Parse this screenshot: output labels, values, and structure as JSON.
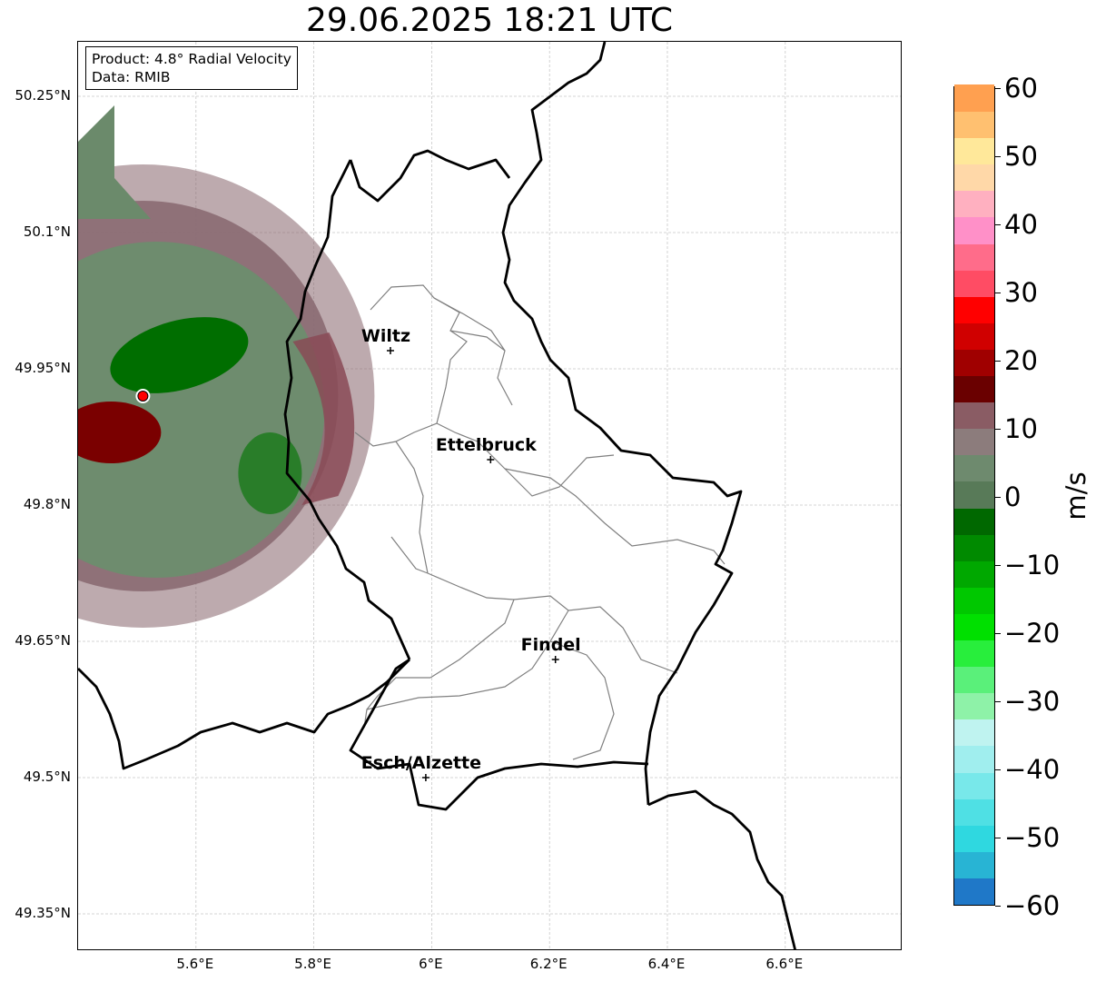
{
  "title": "29.06.2025 18:21 UTC",
  "info": {
    "product": "Product: 4.8° Radial Velocity",
    "data": "Data: RMIB"
  },
  "axes": {
    "lat_ticks": [
      "50.25°N",
      "50.1°N",
      "49.95°N",
      "49.8°N",
      "49.65°N",
      "49.5°N",
      "49.35°N"
    ],
    "lon_ticks": [
      "5.6°E",
      "5.8°E",
      "6°E",
      "6.2°E",
      "6.4°E",
      "6.6°E"
    ],
    "grid": true
  },
  "cities": [
    {
      "name": "Wiltz",
      "lon": 5.93,
      "lat": 49.97
    },
    {
      "name": "Ettelbruck",
      "lon": 6.1,
      "lat": 49.85
    },
    {
      "name": "Findel",
      "lon": 6.21,
      "lat": 49.63
    },
    {
      "name": "Esch/Alzette",
      "lon": 5.99,
      "lat": 49.5
    }
  ],
  "radar_site": {
    "lon": 5.51,
    "lat": 49.92
  },
  "colorbar": {
    "unit": "m/s",
    "min": -60,
    "max": 60,
    "tick_labels": [
      "60",
      "50",
      "40",
      "30",
      "20",
      "10",
      "0",
      "−10",
      "−20",
      "−30",
      "−40",
      "−50",
      "−60"
    ],
    "colors": [
      "#1f78c8",
      "#28b4d4",
      "#2fd8e0",
      "#4fe0e4",
      "#78e8ea",
      "#a0eeee",
      "#bff3f0",
      "#8ef2a8",
      "#5af07a",
      "#28ee3c",
      "#00e000",
      "#00c800",
      "#00a800",
      "#008a00",
      "#006800",
      "#587a58",
      "#6e8a6e",
      "#8c7c7c",
      "#8a5c64",
      "#6a0000",
      "#a00000",
      "#d00000",
      "#ff0000",
      "#ff4c64",
      "#ff6c8a",
      "#ff90c8",
      "#ffb0c0",
      "#ffd8a8",
      "#ffe89a",
      "#ffc070",
      "#ffa050"
    ]
  },
  "map_colors": {
    "outbound_red": "#7a0000",
    "inbound_green": "#006e00",
    "near_zero_green": "#6e8c6e",
    "near_zero_mauve": "#86646c",
    "grid": "#c8c8c8",
    "border": "#000000",
    "canton": "#808080"
  }
}
